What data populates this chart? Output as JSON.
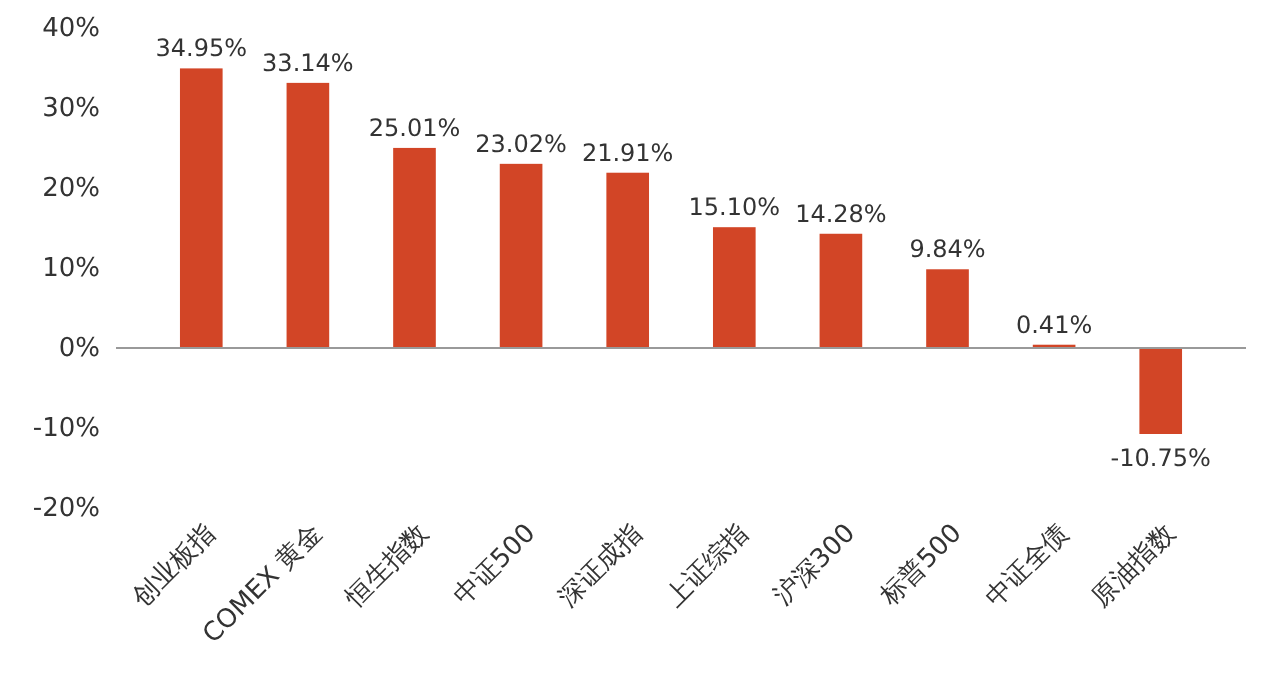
{
  "chart_data": {
    "type": "bar",
    "categories": [
      "创业板指",
      "COMEX 黄金",
      "恒生指数",
      "中证500",
      "深证成指",
      "上证综指",
      "沪深300",
      "标普500",
      "中证全债",
      "原油指数"
    ],
    "values": [
      34.95,
      33.14,
      25.01,
      23.02,
      21.91,
      15.1,
      14.28,
      9.84,
      0.41,
      -10.75
    ],
    "value_labels": [
      "34.95%",
      "33.14%",
      "25.01%",
      "23.02%",
      "21.91%",
      "15.10%",
      "14.28%",
      "9.84%",
      "0.41%",
      "-10.75%"
    ],
    "color": "#d24526",
    "ylim": [
      -20,
      40
    ],
    "yticks": [
      {
        "value": -20,
        "label": "-20%"
      },
      {
        "value": -10,
        "label": "-10%"
      },
      {
        "value": 0,
        "label": "0%"
      },
      {
        "value": 10,
        "label": "10%"
      },
      {
        "value": 20,
        "label": "20%"
      },
      {
        "value": 30,
        "label": "30%"
      },
      {
        "value": 40,
        "label": "40%"
      }
    ]
  }
}
